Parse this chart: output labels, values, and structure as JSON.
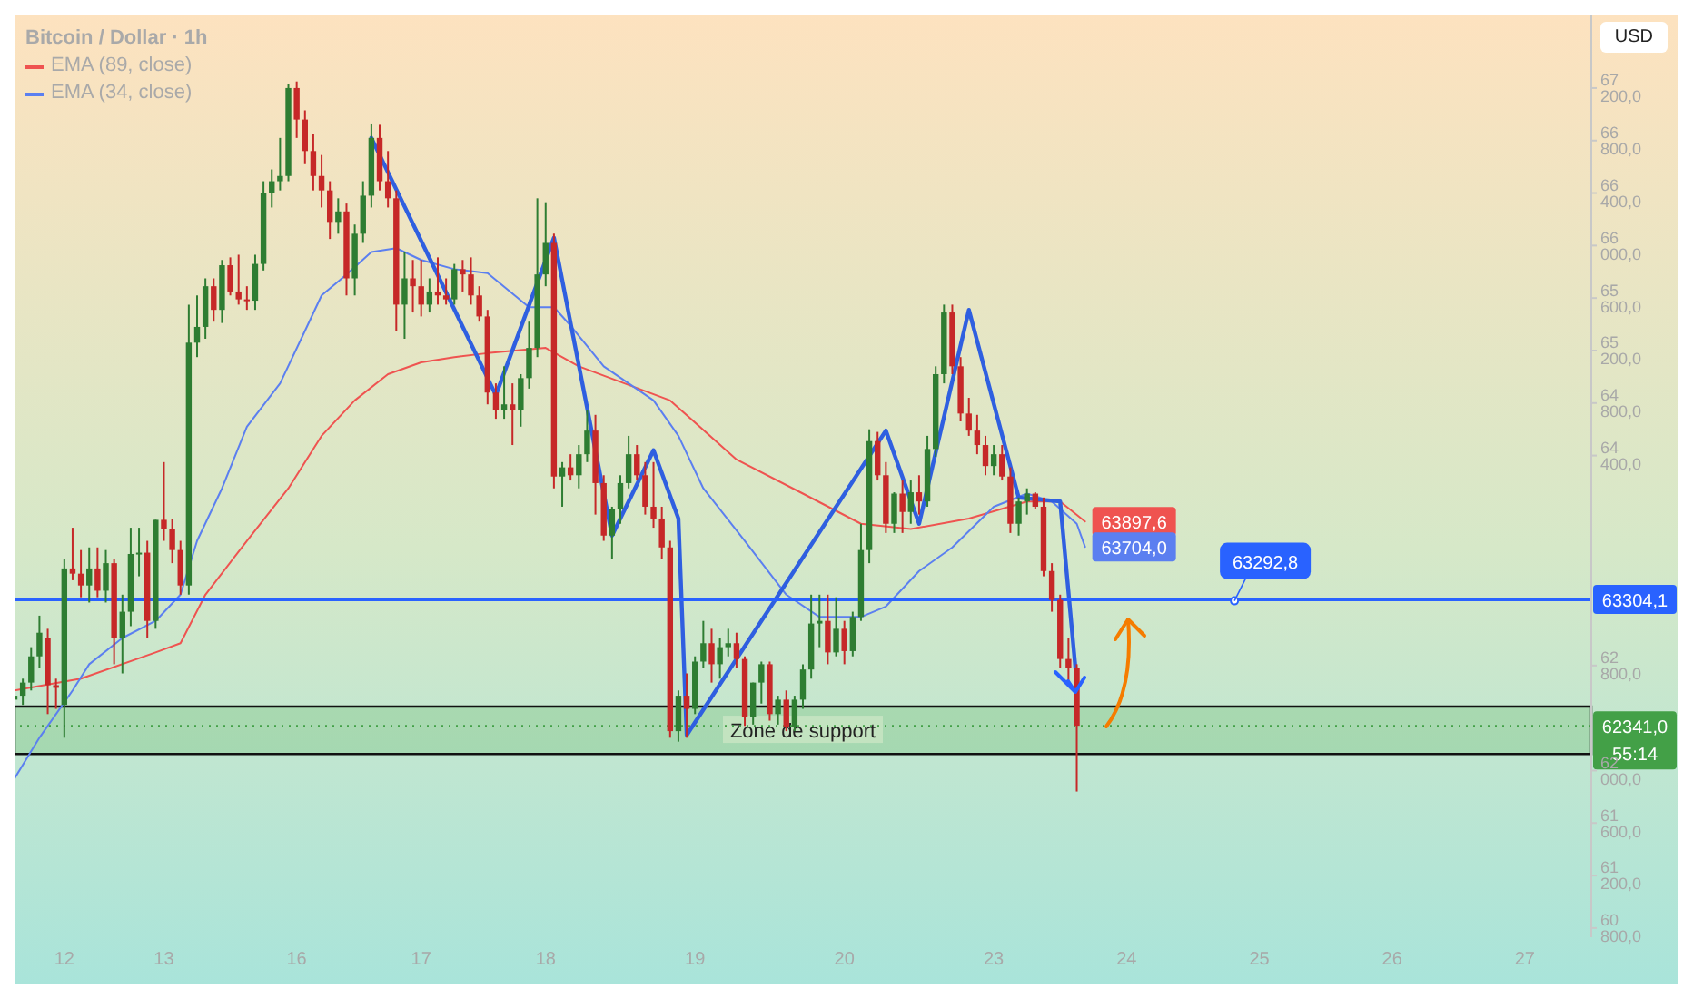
{
  "chart_data": {
    "type": "candlestick",
    "title": "Bitcoin / Dollar · 1h",
    "legend": "top left",
    "categories": [
      null,
      null,
      null,
      null,
      null,
      null,
      "12",
      null,
      null,
      null,
      null,
      null,
      null,
      null,
      null,
      null,
      null,
      null,
      "13",
      null,
      null,
      null,
      null,
      null,
      null,
      null,
      null,
      null,
      null,
      null,
      null,
      null,
      null,
      null,
      "16",
      null,
      null,
      null,
      null,
      null,
      null,
      null,
      null,
      null,
      null,
      null,
      null,
      null,
      null,
      "17",
      null,
      null,
      null,
      null,
      null,
      null,
      null,
      null,
      null,
      null,
      null,
      null,
      null,
      null,
      "18",
      null,
      null,
      null,
      null,
      null,
      null,
      null,
      null,
      null,
      null,
      null,
      null,
      null,
      null,
      null,
      null,
      null,
      "19",
      null,
      null,
      null,
      null,
      null,
      null,
      null,
      null,
      null,
      null,
      null,
      null,
      null,
      null,
      null,
      null,
      null,
      "20",
      null,
      null,
      null,
      null,
      null,
      null,
      null,
      null,
      null,
      null,
      null,
      null,
      null,
      null,
      null,
      null,
      null,
      "23",
      null,
      null,
      null,
      null,
      null,
      null,
      null,
      null,
      null,
      null,
      null,
      null,
      null,
      null,
      null,
      "24",
      null,
      null,
      null,
      null,
      null,
      null,
      null,
      null,
      null,
      null,
      null,
      null,
      null,
      null,
      null,
      "25",
      null,
      null,
      null,
      null,
      null,
      null,
      null,
      null,
      null,
      null,
      null,
      null,
      null,
      null,
      null,
      "26",
      null,
      null,
      null,
      null,
      null,
      null,
      null,
      null,
      null,
      null,
      null,
      null,
      null,
      null,
      null,
      "27",
      null,
      null,
      null,
      null,
      null,
      null,
      null,
      null
    ],
    "ylim": [
      60730,
      67760
    ],
    "yticks": [
      {
        "value": 60800,
        "label": "60 800,0"
      },
      {
        "value": 61200,
        "label": "61 200,0"
      },
      {
        "value": 61600,
        "label": "61 600,0"
      },
      {
        "value": 62000,
        "label": "62 000,0"
      },
      {
        "value": 62800,
        "label": "62 800,0"
      },
      {
        "value": 64400,
        "label": "64 400,0"
      },
      {
        "value": 64800,
        "label": "64 800,0"
      },
      {
        "value": 65200,
        "label": "65 200,0"
      },
      {
        "value": 65600,
        "label": "65 600,0"
      },
      {
        "value": 66000,
        "label": "66 000,0"
      },
      {
        "value": 66400,
        "label": "66 400,0"
      },
      {
        "value": 66800,
        "label": "66 800,0"
      },
      {
        "value": 67200,
        "label": "67 200,0"
      }
    ],
    "series": [
      {
        "ohlc": [
          [
            62540,
            62670,
            62470,
            62570
          ],
          [
            62570,
            62700,
            62500,
            62670
          ],
          [
            62670,
            62940,
            62610,
            62870
          ],
          [
            62870,
            63180,
            62780,
            63050
          ],
          [
            63010,
            63080,
            62430,
            62650
          ],
          [
            62650,
            62700,
            62470,
            62630
          ],
          [
            62500,
            63610,
            62250,
            63540
          ],
          [
            63540,
            63850,
            63450,
            63500
          ],
          [
            63500,
            63680,
            63320,
            63410
          ],
          [
            63410,
            63700,
            63280,
            63540
          ],
          [
            63540,
            63700,
            63320,
            63370
          ],
          [
            63370,
            63680,
            63280,
            63580
          ],
          [
            63580,
            63610,
            62810,
            63010
          ],
          [
            63010,
            63340,
            62740,
            63210
          ],
          [
            63210,
            63850,
            63100,
            63650
          ],
          [
            63650,
            63850,
            63480,
            63660
          ],
          [
            63660,
            63750,
            63010,
            63140
          ],
          [
            63140,
            63910,
            63080,
            63910
          ],
          [
            63910,
            64350,
            63750,
            63840
          ],
          [
            63840,
            63920,
            63580,
            63680
          ],
          [
            63680,
            63750,
            63340,
            63410
          ],
          [
            63410,
            65550,
            63340,
            65260
          ],
          [
            65260,
            65620,
            65150,
            65380
          ],
          [
            65380,
            65750,
            65290,
            65690
          ],
          [
            65690,
            65750,
            65420,
            65510
          ],
          [
            65510,
            65890,
            65410,
            65850
          ],
          [
            65850,
            65910,
            65620,
            65650
          ],
          [
            65650,
            65930,
            65550,
            65590
          ],
          [
            65590,
            65690,
            65510,
            65580
          ],
          [
            65580,
            65930,
            65510,
            65860
          ],
          [
            65860,
            66490,
            65810,
            66400
          ],
          [
            66400,
            66580,
            66290,
            66490
          ],
          [
            66490,
            66820,
            66420,
            66530
          ],
          [
            66530,
            67230,
            66490,
            67200
          ],
          [
            67200,
            67250,
            66820,
            66960
          ],
          [
            66960,
            67030,
            66620,
            66720
          ],
          [
            66720,
            66850,
            66420,
            66530
          ],
          [
            66530,
            66690,
            66290,
            66420
          ],
          [
            66420,
            66490,
            66050,
            66180
          ],
          [
            66180,
            66360,
            66090,
            66260
          ],
          [
            66260,
            66320,
            65620,
            65750
          ],
          [
            65750,
            66160,
            65620,
            66090
          ],
          [
            66090,
            66490,
            66020,
            66380
          ],
          [
            66380,
            66930,
            66290,
            66820
          ],
          [
            66820,
            66920,
            66420,
            66490
          ],
          [
            66490,
            66720,
            66290,
            66360
          ],
          [
            66360,
            66420,
            65350,
            65550
          ],
          [
            65550,
            65950,
            65290,
            65750
          ],
          [
            65750,
            65890,
            65490,
            65690
          ],
          [
            65690,
            65890,
            65460,
            65550
          ],
          [
            65550,
            65750,
            65490,
            65650
          ],
          [
            65650,
            65910,
            65550,
            65620
          ],
          [
            65620,
            65750,
            65550,
            65590
          ],
          [
            65590,
            65860,
            65550,
            65820
          ],
          [
            65820,
            65890,
            65650,
            65780
          ],
          [
            65780,
            65910,
            65550,
            65620
          ],
          [
            65620,
            65690,
            65420,
            65460
          ],
          [
            65460,
            65510,
            64790,
            64880
          ],
          [
            64880,
            64950,
            64680,
            64750
          ],
          [
            64750,
            65080,
            64680,
            64790
          ],
          [
            64790,
            64950,
            64480,
            64750
          ],
          [
            64750,
            65020,
            64620,
            64990
          ],
          [
            64990,
            65420,
            64910,
            65220
          ],
          [
            65220,
            66360,
            65150,
            65780
          ],
          [
            65780,
            66330,
            65690,
            66020
          ],
          [
            66020,
            66090,
            64150,
            64240
          ],
          [
            64240,
            64350,
            64010,
            64310
          ],
          [
            64310,
            64410,
            64210,
            64250
          ],
          [
            64250,
            64480,
            64150,
            64410
          ],
          [
            64410,
            64750,
            64350,
            64590
          ],
          [
            64590,
            64710,
            63950,
            64190
          ],
          [
            64190,
            64250,
            63750,
            63790
          ],
          [
            63790,
            64010,
            63610,
            63990
          ],
          [
            63990,
            64250,
            63880,
            64190
          ],
          [
            64190,
            64550,
            64150,
            64410
          ],
          [
            64410,
            64480,
            64210,
            64250
          ],
          [
            64250,
            64350,
            63950,
            64010
          ],
          [
            64010,
            64350,
            63850,
            63920
          ],
          [
            63920,
            64010,
            63610,
            63700
          ],
          [
            63700,
            63750,
            62250,
            62300
          ],
          [
            62300,
            62610,
            62220,
            62570
          ],
          [
            62570,
            62740,
            62250,
            62470
          ],
          [
            62470,
            62870,
            62430,
            62830
          ],
          [
            62830,
            63140,
            62780,
            62970
          ],
          [
            62970,
            63080,
            62670,
            62810
          ],
          [
            62810,
            63010,
            62700,
            62940
          ],
          [
            62940,
            63080,
            62870,
            62970
          ],
          [
            62970,
            63050,
            62780,
            62850
          ],
          [
            62850,
            62870,
            62340,
            62410
          ],
          [
            62410,
            62670,
            62350,
            62670
          ],
          [
            62670,
            62830,
            62510,
            62810
          ],
          [
            62810,
            62830,
            62380,
            62430
          ],
          [
            62430,
            62570,
            62350,
            62540
          ],
          [
            62540,
            62610,
            62300,
            62330
          ],
          [
            62330,
            62570,
            62300,
            62540
          ],
          [
            62540,
            62810,
            62470,
            62770
          ],
          [
            62770,
            63340,
            62700,
            63120
          ],
          [
            63120,
            63340,
            62940,
            63140
          ],
          [
            63140,
            63340,
            62810,
            62900
          ],
          [
            62900,
            63320,
            62870,
            63080
          ],
          [
            63080,
            63140,
            62810,
            62910
          ],
          [
            62910,
            63210,
            62870,
            63170
          ],
          [
            63170,
            63880,
            63140,
            63680
          ],
          [
            63680,
            64600,
            63580,
            64510
          ],
          [
            64510,
            64580,
            64210,
            64250
          ],
          [
            64250,
            64350,
            63810,
            63880
          ],
          [
            63880,
            64120,
            63810,
            64110
          ],
          [
            64110,
            64210,
            63810,
            63970
          ],
          [
            63970,
            64210,
            63880,
            64120
          ],
          [
            64120,
            64250,
            63950,
            64050
          ],
          [
            64050,
            64550,
            64010,
            64450
          ],
          [
            64450,
            65080,
            64390,
            65020
          ],
          [
            65020,
            65550,
            64950,
            65490
          ],
          [
            65490,
            65550,
            65020,
            65080
          ],
          [
            65080,
            65150,
            64660,
            64720
          ],
          [
            64720,
            64840,
            64550,
            64590
          ],
          [
            64590,
            64710,
            64410,
            64480
          ],
          [
            64480,
            64550,
            64250,
            64320
          ],
          [
            64320,
            64480,
            64250,
            64410
          ],
          [
            64410,
            64480,
            64210,
            64240
          ],
          [
            64240,
            64310,
            63810,
            63880
          ],
          [
            63880,
            64080,
            63790,
            64050
          ],
          [
            64050,
            64150,
            63950,
            64110
          ],
          [
            64110,
            64120,
            63990,
            64010
          ],
          [
            64010,
            64080,
            63480,
            63520
          ],
          [
            63520,
            63580,
            63210,
            63300
          ],
          [
            63300,
            63340,
            62780,
            62850
          ],
          [
            62850,
            63010,
            62650,
            62780
          ],
          [
            62780,
            62810,
            61840,
            62341
          ],
          null,
          null,
          null,
          null,
          null,
          null,
          null,
          null,
          null,
          null,
          null,
          null,
          null,
          null,
          null,
          null,
          null,
          null,
          null,
          null,
          null,
          null,
          null,
          null,
          null,
          null,
          null,
          null,
          null,
          null,
          null,
          null,
          null,
          null,
          null,
          null,
          null,
          null,
          null,
          null,
          null,
          null,
          null,
          null,
          null,
          null,
          null,
          null,
          null,
          null,
          null,
          null,
          null,
          null,
          null,
          null,
          null,
          null,
          null,
          null,
          null,
          null
        ]
      },
      {
        "type": "line",
        "name": "EMA (89, close)",
        "color": "#ef5350",
        "values": [
          62610,
          null,
          null,
          null,
          null,
          null,
          null,
          null,
          62700,
          null,
          null,
          null,
          null,
          null,
          null,
          null,
          null,
          62900,
          null,
          null,
          62970,
          null,
          null,
          63340,
          null,
          null,
          null,
          null,
          63750,
          null,
          null,
          null,
          null,
          64150,
          null,
          null,
          null,
          64550,
          null,
          null,
          null,
          64820,
          null,
          null,
          null,
          65020,
          null,
          null,
          null,
          65110,
          null,
          null,
          null,
          65150,
          null,
          null,
          null,
          65180,
          null,
          null,
          null,
          null,
          null,
          null,
          65220,
          null,
          null,
          null,
          65080,
          null,
          null,
          null,
          null,
          null,
          null,
          null,
          null,
          null,
          null,
          64820,
          null,
          null,
          null,
          null,
          null,
          null,
          null,
          64370,
          null,
          null,
          null,
          null,
          null,
          null,
          null,
          64110,
          null,
          null,
          null,
          null,
          null,
          null,
          63880,
          null,
          null,
          null,
          null,
          null,
          63840,
          null,
          null,
          null,
          null,
          null,
          null,
          63920,
          null,
          null,
          null,
          null,
          null,
          null,
          64050,
          null,
          null,
          null,
          64050,
          null,
          null,
          63897.6,
          null,
          null,
          null,
          null,
          null,
          null,
          null,
          null,
          null,
          null,
          null,
          null,
          null,
          null,
          null,
          null,
          null,
          null,
          null,
          null,
          null,
          null,
          null,
          null,
          null,
          null,
          null,
          null,
          null,
          null,
          null,
          null,
          null,
          null,
          null,
          null,
          null,
          null,
          null,
          null,
          null,
          null,
          null,
          null,
          null,
          null,
          null,
          null,
          null,
          null,
          null,
          null,
          null,
          null,
          null,
          null,
          null,
          null,
          null,
          null,
          null
        ],
        "value_labels": [
          null,
          null,
          null,
          null,
          null,
          null,
          null,
          null,
          null,
          null,
          null,
          null,
          null,
          null,
          null,
          null,
          null,
          null,
          null,
          null,
          null,
          null,
          null,
          null,
          null,
          null,
          null,
          null,
          null,
          null,
          null,
          null,
          null,
          null,
          null,
          null,
          null,
          null,
          null,
          null,
          null,
          null,
          null,
          null,
          null,
          null,
          null,
          null,
          null,
          null,
          null,
          null,
          null,
          null,
          null,
          null,
          null,
          null,
          null,
          null,
          null,
          null,
          null,
          null,
          null,
          null,
          null,
          null,
          null,
          null,
          null,
          null,
          null,
          null,
          null,
          null,
          null,
          null,
          null,
          null,
          null,
          null,
          null,
          null,
          null,
          null,
          null,
          null,
          null,
          null,
          null,
          null,
          null,
          null,
          null,
          null,
          null,
          null,
          null,
          null,
          null,
          null,
          null,
          null,
          null,
          null,
          null,
          null,
          null,
          null,
          null,
          null,
          null,
          null,
          null,
          null,
          null,
          null,
          null,
          null,
          null,
          null,
          null,
          null,
          null,
          null,
          null,
          null,
          null,
          "63897,6",
          null,
          null,
          null,
          null,
          null,
          null,
          null,
          null,
          null,
          null,
          null,
          null,
          null,
          null,
          null,
          null,
          null,
          null,
          null,
          null,
          null,
          null,
          null,
          null,
          null,
          null,
          null,
          null,
          null,
          null,
          null,
          null,
          null,
          null,
          null,
          null,
          null,
          null,
          null,
          null,
          null,
          null,
          null,
          null,
          null,
          null,
          null,
          null,
          null,
          null,
          null,
          null,
          null,
          null,
          null,
          null,
          null,
          null,
          null,
          null,
          null
        ]
      },
      {
        "type": "line",
        "name": "EMA (34, close)",
        "color": "#5b7ff0",
        "values": [
          61940,
          null,
          null,
          62250,
          null,
          null,
          null,
          62610,
          null,
          62810,
          null,
          null,
          null,
          63010,
          null,
          null,
          null,
          63140,
          null,
          null,
          63340,
          null,
          63750,
          null,
          null,
          64150,
          null,
          null,
          64620,
          null,
          null,
          null,
          64950,
          null,
          null,
          65350,
          null,
          65620,
          null,
          null,
          65780,
          null,
          null,
          65950,
          null,
          null,
          65980,
          null,
          null,
          65890,
          null,
          null,
          null,
          65820,
          null,
          null,
          null,
          65790,
          null,
          null,
          null,
          null,
          65530,
          null,
          null,
          65530,
          null,
          65390,
          null,
          null,
          null,
          65080,
          null,
          null,
          null,
          null,
          null,
          64820,
          null,
          null,
          64550,
          null,
          null,
          64150,
          null,
          null,
          null,
          null,
          63750,
          null,
          null,
          null,
          null,
          63340,
          null,
          null,
          null,
          63170,
          null,
          null,
          null,
          null,
          63170,
          null,
          null,
          63250,
          null,
          null,
          null,
          63520,
          null,
          null,
          null,
          63700,
          null,
          null,
          null,
          null,
          64010,
          null,
          null,
          null,
          64110,
          null,
          null,
          64050,
          null,
          null,
          63880,
          63704,
          null,
          null,
          null,
          null,
          null,
          null,
          null,
          null,
          null,
          null,
          null,
          null,
          null,
          null,
          null,
          null,
          null,
          null,
          null,
          null,
          null,
          null,
          null,
          null,
          null,
          null,
          null,
          null,
          null,
          null,
          null,
          null,
          null,
          null,
          null,
          null,
          null,
          null,
          null,
          null,
          null,
          null,
          null,
          null,
          null,
          null,
          null,
          null,
          null,
          null,
          null,
          null,
          null,
          null,
          null,
          null,
          null,
          null,
          null,
          null,
          null
        ],
        "value_labels": [
          null,
          null,
          null,
          null,
          null,
          null,
          null,
          null,
          null,
          null,
          null,
          null,
          null,
          null,
          null,
          null,
          null,
          null,
          null,
          null,
          null,
          null,
          null,
          null,
          null,
          null,
          null,
          null,
          null,
          null,
          null,
          null,
          null,
          null,
          null,
          null,
          null,
          null,
          null,
          null,
          null,
          null,
          null,
          null,
          null,
          null,
          null,
          null,
          null,
          null,
          null,
          null,
          null,
          null,
          null,
          null,
          null,
          null,
          null,
          null,
          null,
          null,
          null,
          null,
          null,
          null,
          null,
          null,
          null,
          null,
          null,
          null,
          null,
          null,
          null,
          null,
          null,
          null,
          null,
          null,
          null,
          null,
          null,
          null,
          null,
          null,
          null,
          null,
          null,
          null,
          null,
          null,
          null,
          null,
          null,
          null,
          null,
          null,
          null,
          null,
          null,
          null,
          null,
          null,
          null,
          null,
          null,
          null,
          null,
          null,
          null,
          null,
          null,
          null,
          null,
          null,
          null,
          null,
          null,
          null,
          null,
          null,
          null,
          null,
          null,
          null,
          null,
          null,
          null,
          "63704,0",
          null,
          null,
          null,
          null,
          null,
          null,
          null,
          null,
          null,
          null,
          null,
          null,
          null,
          null,
          null,
          null,
          null,
          null,
          null,
          null,
          null,
          null,
          null,
          null,
          null,
          null,
          null,
          null,
          null,
          null,
          null,
          null,
          null,
          null,
          null,
          null,
          null,
          null,
          null,
          null,
          null,
          null,
          null,
          null,
          null,
          null,
          null,
          null,
          null,
          null,
          null,
          null,
          null,
          null,
          null,
          null,
          null,
          null,
          null,
          null,
          null
        ]
      },
      {
        "type": "line",
        "color": "#2f5fe0",
        "values": [
          null,
          null,
          null,
          null,
          null,
          null,
          null,
          null,
          null,
          null,
          null,
          null,
          null,
          null,
          null,
          null,
          null,
          null,
          null,
          null,
          null,
          null,
          null,
          null,
          null,
          null,
          null,
          null,
          null,
          null,
          null,
          null,
          null,
          null,
          null,
          null,
          null,
          null,
          null,
          null,
          null,
          null,
          null,
          66820,
          null,
          null,
          null,
          null,
          null,
          null,
          null,
          null,
          null,
          null,
          null,
          null,
          null,
          null,
          64860,
          null,
          null,
          null,
          null,
          null,
          null,
          66060,
          null,
          null,
          null,
          null,
          null,
          null,
          63790,
          null,
          null,
          null,
          null,
          64440,
          null,
          null,
          63920,
          62270,
          null,
          null,
          null,
          null,
          null,
          null,
          null,
          null,
          null,
          null,
          null,
          null,
          null,
          null,
          null,
          null,
          null,
          null,
          null,
          null,
          null,
          null,
          null,
          64590,
          null,
          null,
          null,
          63880,
          null,
          null,
          null,
          null,
          null,
          65510,
          null,
          null,
          null,
          null,
          null,
          64080,
          null,
          null,
          null,
          null,
          64050,
          null,
          62670,
          null,
          null,
          null,
          null,
          null,
          null,
          null,
          null,
          null,
          null,
          null,
          null,
          null,
          null,
          null,
          null,
          null,
          null,
          null,
          null,
          null,
          null,
          null,
          null,
          null,
          null,
          null,
          null,
          null,
          null,
          null,
          null,
          null,
          null,
          null,
          null,
          null,
          null,
          null,
          null,
          null,
          null,
          null,
          null,
          null,
          null,
          null,
          null,
          null,
          null,
          null,
          null,
          null,
          null,
          null,
          null,
          null,
          null,
          null,
          null,
          null,
          null
        ]
      }
    ],
    "ref_lines": [
      {
        "axis": "y",
        "value": 63304.1,
        "label": "63304,1",
        "color": "#2962ff",
        "line_style": "solid"
      },
      {
        "axis": "y",
        "value": 62341,
        "label": "62341,0",
        "color": "#43a047",
        "line_style": "dotted"
      }
    ],
    "bands": [
      {
        "axis": "y",
        "from": 62126,
        "to": 62488,
        "label": "Zone de support",
        "color": "#66bb6a"
      }
    ],
    "annotations": [
      "USD",
      "55:14",
      {
        "text": "63292,8",
        "y": 63292.8
      }
    ]
  }
}
